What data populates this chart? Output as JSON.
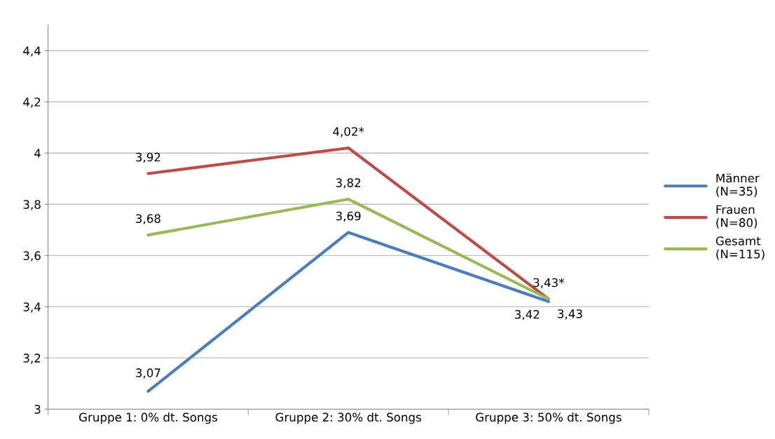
{
  "chart_data": {
    "type": "line",
    "categories": [
      "Gruppe 1: 0% dt. Songs",
      "Gruppe 2: 30% dt. Songs",
      "Gruppe 3: 50% dt. Songs"
    ],
    "series": [
      {
        "name": "Männer\n(N=35)",
        "color": "#4a7ebb",
        "values": [
          3.07,
          3.69,
          3.42
        ],
        "value_labels": [
          "3,07",
          "3,69",
          "3,42"
        ]
      },
      {
        "name": "Frauen\n(N=80)",
        "color": "#be4b48",
        "values": [
          3.92,
          4.02,
          3.43
        ],
        "value_labels": [
          "3,92",
          "4,02*",
          "3,43*"
        ]
      },
      {
        "name": "Gesamt\n(N=115)",
        "color": "#98b954",
        "values": [
          3.68,
          3.82,
          3.43
        ],
        "value_labels": [
          "3,68",
          "3,82",
          "3,43"
        ]
      }
    ],
    "ylim": [
      3,
      4.5
    ],
    "yticks": [
      {
        "value": 3,
        "label": "3"
      },
      {
        "value": 3.2,
        "label": "3,2"
      },
      {
        "value": 3.4,
        "label": "3,4"
      },
      {
        "value": 3.6,
        "label": "3,6"
      },
      {
        "value": 3.8,
        "label": "3,8"
      },
      {
        "value": 4,
        "label": "4"
      },
      {
        "value": 4.2,
        "label": "4,2"
      },
      {
        "value": 4.4,
        "label": "4,4"
      }
    ],
    "grid": "y",
    "legend": "right",
    "marker": "none",
    "line_style": "solid"
  }
}
